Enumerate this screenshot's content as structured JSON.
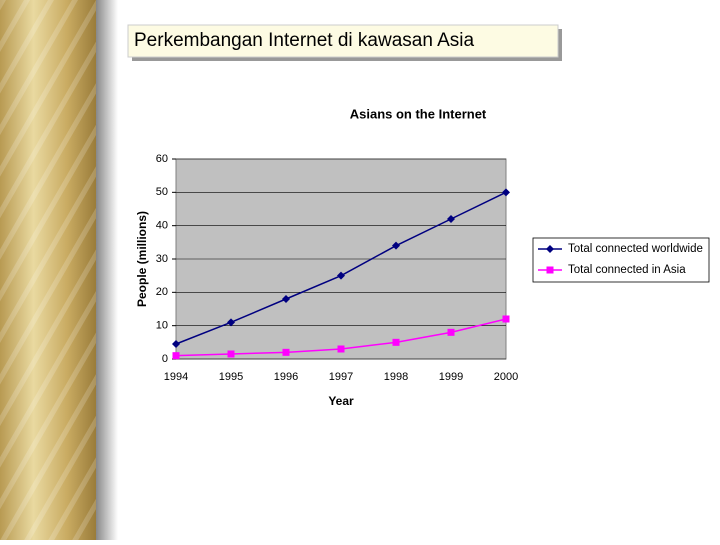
{
  "slide_title": "Perkembangan Internet di kawasan  Asia",
  "chart_data": {
    "type": "line",
    "title": "Asians on the Internet",
    "x_label": "Year",
    "y_label": "People (millions)",
    "categories": [
      "1994",
      "1995",
      "1996",
      "1997",
      "1998",
      "1999",
      "2000"
    ],
    "series": [
      {
        "name": "Total connected worldwide",
        "color": "#000080",
        "marker": "diamond",
        "values": [
          4.5,
          11,
          18,
          25,
          34,
          42,
          50
        ]
      },
      {
        "name": "Total connected in Asia",
        "color": "#ff00ff",
        "marker": "square",
        "values": [
          1,
          1.5,
          2,
          3,
          5,
          8,
          12
        ]
      }
    ],
    "ylim": [
      0,
      60
    ],
    "yticks": [
      0,
      10,
      20,
      30,
      40,
      50,
      60
    ],
    "grid": true,
    "legend": "right"
  }
}
